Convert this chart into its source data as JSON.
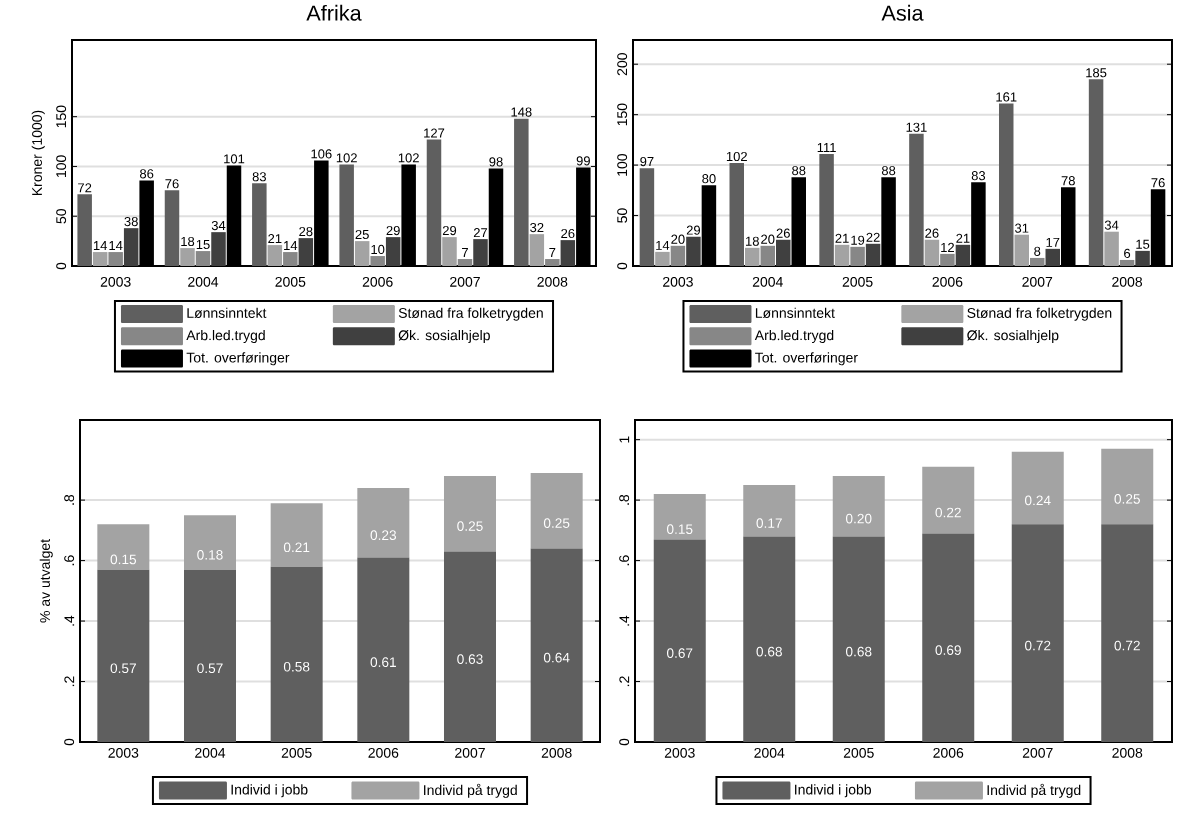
{
  "chart_data": [
    {
      "type": "bar",
      "title": "Afrika",
      "ylabel": "Kroner (1000)",
      "categories": [
        "2003",
        "2004",
        "2005",
        "2006",
        "2007",
        "2008"
      ],
      "series": [
        {
          "name": "Lønnsinntekt",
          "color": "#5f5f5f",
          "values": [
            72,
            76,
            83,
            102,
            127,
            148
          ]
        },
        {
          "name": "Stønad fra folketrygden",
          "color": "#a3a3a3",
          "values": [
            14,
            18,
            21,
            25,
            29,
            32
          ]
        },
        {
          "name": "Arb.led.trygd",
          "color": "#878787",
          "values": [
            14,
            15,
            14,
            10,
            7,
            7
          ]
        },
        {
          "name": "Øk. sosialhjelp",
          "color": "#404040",
          "values": [
            38,
            34,
            28,
            29,
            27,
            26
          ]
        },
        {
          "name": "Tot. overføringer",
          "color": "#000000",
          "values": [
            86,
            101,
            106,
            102,
            98,
            99
          ]
        }
      ],
      "ylim": [
        0,
        227
      ],
      "yticks": [
        0,
        50,
        100,
        150
      ],
      "grid": "y",
      "legend": "bottom",
      "data_labels": true
    },
    {
      "type": "bar",
      "title": "Asia",
      "categories": [
        "2003",
        "2004",
        "2005",
        "2006",
        "2007",
        "2008"
      ],
      "series": [
        {
          "name": "Lønnsinntekt",
          "color": "#5f5f5f",
          "values": [
            97,
            102,
            111,
            131,
            161,
            185
          ]
        },
        {
          "name": "Stønad fra folketrygden",
          "color": "#a3a3a3",
          "values": [
            14,
            18,
            21,
            26,
            31,
            34
          ]
        },
        {
          "name": "Arb.led.trygd",
          "color": "#878787",
          "values": [
            20,
            20,
            19,
            12,
            8,
            6
          ]
        },
        {
          "name": "Øk. sosialhjelp",
          "color": "#404040",
          "values": [
            29,
            26,
            22,
            21,
            17,
            15
          ]
        },
        {
          "name": "Tot. overføringer",
          "color": "#000000",
          "values": [
            80,
            88,
            88,
            83,
            78,
            76
          ]
        }
      ],
      "ylim": [
        0,
        224
      ],
      "yticks": [
        0,
        50,
        100,
        150,
        200
      ],
      "grid": "y",
      "legend": "bottom",
      "data_labels": true
    },
    {
      "type": "bar",
      "ylabel": "% av utvalget",
      "categories": [
        "2003",
        "2004",
        "2005",
        "2006",
        "2007",
        "2008"
      ],
      "stacked": true,
      "series": [
        {
          "name": "Individ i jobb",
          "color": "#5f5f5f",
          "values": [
            0.57,
            0.57,
            0.58,
            0.61,
            0.63,
            0.64
          ]
        },
        {
          "name": "Individ på trygd",
          "color": "#a3a3a3",
          "values": [
            0.15,
            0.18,
            0.21,
            0.23,
            0.25,
            0.25
          ]
        }
      ],
      "ylim": [
        0,
        1.065
      ],
      "yticks": [
        0,
        {
          "value": 0.2,
          "label": ".2"
        },
        {
          "value": 0.4,
          "label": ".4"
        },
        {
          "value": 0.6,
          "label": ".6"
        },
        {
          "value": 0.8,
          "label": ".8"
        }
      ],
      "grid": "y",
      "legend": "bottom",
      "data_labels": true
    },
    {
      "type": "bar",
      "categories": [
        "2003",
        "2004",
        "2005",
        "2006",
        "2007",
        "2008"
      ],
      "stacked": true,
      "series": [
        {
          "name": "Individ i jobb",
          "color": "#5f5f5f",
          "values": [
            0.67,
            0.68,
            0.68,
            0.69,
            0.72,
            0.72
          ],
          "value_labels": [
            "0.67",
            "0.68",
            "0.68",
            "0.69",
            "0.72",
            "0.72"
          ]
        },
        {
          "name": "Individ på trygd",
          "color": "#a3a3a3",
          "values": [
            0.15,
            0.17,
            0.2,
            0.22,
            0.24,
            0.25
          ],
          "value_labels": [
            "0.15",
            "0.17",
            "0.20",
            "0.22",
            "0.24",
            "0.25"
          ]
        }
      ],
      "ylim": [
        0,
        1.065
      ],
      "yticks": [
        0,
        {
          "value": 0.2,
          "label": ".2"
        },
        {
          "value": 0.4,
          "label": ".4"
        },
        {
          "value": 0.6,
          "label": ".6"
        },
        {
          "value": 0.8,
          "label": ".8"
        },
        1
      ],
      "grid": "y",
      "legend": "bottom"
    }
  ]
}
